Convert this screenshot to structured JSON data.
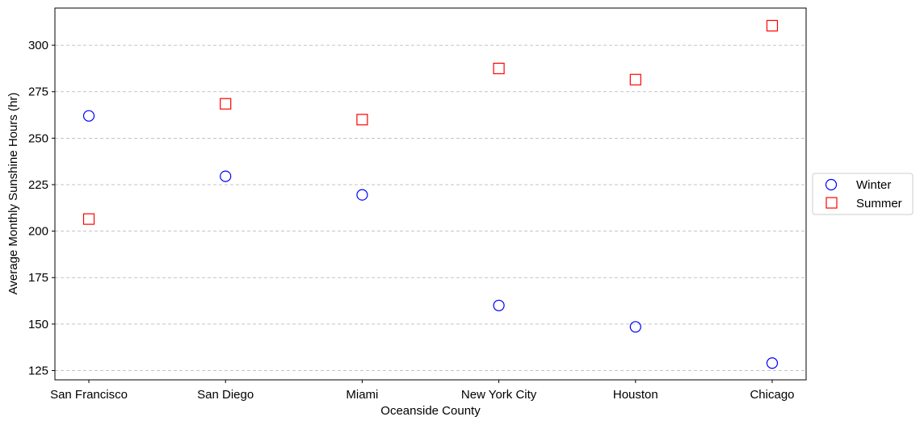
{
  "chart_data": {
    "type": "scatter",
    "categories": [
      "San Francisco",
      "San Diego",
      "Miami",
      "New York City",
      "Houston",
      "Chicago"
    ],
    "series": [
      {
        "name": "Winter",
        "marker": "circle",
        "color": "#0000ff",
        "values": [
          262,
          229.5,
          219.5,
          160,
          148.5,
          129
        ]
      },
      {
        "name": "Summer",
        "marker": "square",
        "color": "#ff0000",
        "values": [
          206.5,
          268.5,
          260,
          287.5,
          281.5,
          310.5
        ]
      }
    ],
    "xlabel": "Oceanside County",
    "ylabel": "Average Monthly Sunshine Hours (hr)",
    "ylim": [
      120,
      320
    ],
    "yticks": [
      125,
      150,
      175,
      200,
      225,
      250,
      275,
      300
    ],
    "grid": {
      "axis": "y",
      "style": "dashed"
    },
    "legend": {
      "placement": "right-outside"
    }
  }
}
